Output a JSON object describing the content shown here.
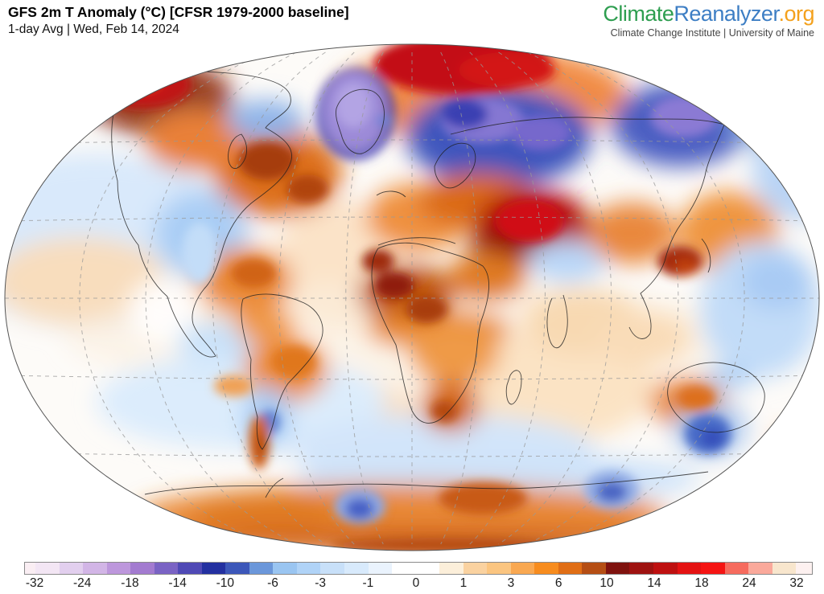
{
  "header": {
    "title": "GFS 2m T Anomaly (°C) [CFSR 1979-2000 baseline]",
    "subtitle": "1-day Avg | Wed, Feb 14, 2024"
  },
  "branding": {
    "logo_part1": "Climate",
    "logo_part2": "Reanalyzer",
    "logo_part3": ".org",
    "tagline": "Climate Change Institute | University of Maine",
    "colors": {
      "part1": "#2e9e50",
      "part2": "#3d7ec4",
      "part3": "#f4a11d"
    }
  },
  "colorbar": {
    "unit": "°C",
    "tick_labels": [
      "-32",
      "-24",
      "-18",
      "-14",
      "-10",
      "-6",
      "-3",
      "-1",
      "0",
      "1",
      "3",
      "6",
      "10",
      "14",
      "18",
      "24",
      "32"
    ],
    "tick_pct": [
      1.33,
      7.37,
      13.41,
      19.45,
      25.49,
      31.53,
      37.57,
      43.61,
      49.69,
      55.71,
      61.73,
      67.78,
      73.88,
      79.9,
      85.92,
      91.94,
      97.96
    ],
    "boundary_values": [
      -40,
      -32,
      -28,
      -24,
      -21,
      -18,
      -16,
      -14,
      -12,
      -10,
      -8,
      -6,
      -4,
      -3,
      -2,
      -1,
      -0.5,
      0.5,
      1,
      2,
      3,
      4,
      6,
      8,
      10,
      12,
      14,
      16,
      18,
      21,
      24,
      28,
      32,
      40
    ],
    "boundary_pct": [
      0,
      1.33,
      4.35,
      7.37,
      10.39,
      13.41,
      16.43,
      19.45,
      22.47,
      25.49,
      28.51,
      31.53,
      34.55,
      37.57,
      40.59,
      43.61,
      46.63,
      52.67,
      55.69,
      58.71,
      61.73,
      64.76,
      67.78,
      70.8,
      73.82,
      76.84,
      79.86,
      82.88,
      85.9,
      88.92,
      91.94,
      94.96,
      97.96,
      100
    ],
    "segment_colors": [
      "#faeef3",
      "#f3e6f4",
      "#e2cfee",
      "#d2b5e6",
      "#bd97dc",
      "#a37bd0",
      "#7a63c4",
      "#4f49b5",
      "#2330a0",
      "#3c57b9",
      "#6b97da",
      "#9ac5f1",
      "#b0d3f7",
      "#c8e0f9",
      "#d8eafc",
      "#eaf3fd",
      "#ffffff",
      "#fcefda",
      "#fad2a0",
      "#fbc580",
      "#f9a851",
      "#f78c1e",
      "#e06e15",
      "#b54e14",
      "#7f120e",
      "#9e1210",
      "#be1010",
      "#e41212",
      "#f51413",
      "#f66b5e",
      "#faa99b",
      "#f8e6cd",
      "#fdf1f0"
    ]
  },
  "map": {
    "base_color": "#fdfbf8",
    "regions": [
      [
        "npac-wash-blue",
        120,
        253,
        190,
        110,
        "#d9e9fb",
        1,
        "s"
      ],
      [
        "npac-wash-orange",
        100,
        303,
        110,
        55,
        "#f8ddbd",
        1,
        "s"
      ],
      [
        "npac-wash-orange2",
        235,
        333,
        70,
        35,
        "#f9e0c4",
        1,
        "s"
      ],
      [
        "atlantic-wash-orange",
        425,
        283,
        85,
        80,
        "#fbe3c8",
        1,
        "s"
      ],
      [
        "tropics-warm-wash",
        512,
        373,
        430,
        70,
        "#fbeedd",
        0.6,
        "s"
      ],
      [
        "satlantic-wash",
        430,
        473,
        95,
        45,
        "#f9ddbe",
        1,
        "s"
      ],
      [
        "indian-ocean-wash",
        690,
        433,
        125,
        70,
        "#fbe3c4",
        1,
        "s"
      ],
      [
        "spacific-wash-blue",
        300,
        453,
        180,
        60,
        "#dcecfc",
        1,
        "s"
      ],
      [
        "southern-ocean-blue",
        550,
        513,
        190,
        45,
        "#d3e5fa",
        1,
        "s"
      ],
      [
        "southern-ocean-blue2",
        620,
        548,
        250,
        32,
        "#cfe3f9",
        1,
        "s"
      ],
      [
        "arctic-orange-halo",
        600,
        70,
        180,
        60,
        "#ef8030",
        0.9,
        "s"
      ],
      [
        "alaska-maroon-halo",
        200,
        75,
        90,
        48,
        "#8f2b10",
        0.9,
        "s"
      ],
      [
        "canada-east-orange",
        345,
        168,
        80,
        55,
        "#dd6f1d",
        1,
        "s"
      ],
      [
        "canada-west-orange",
        245,
        128,
        65,
        38,
        "#e98038",
        1,
        "s"
      ],
      [
        "arctic-islands-blue",
        330,
        103,
        48,
        26,
        "#8fb4e8",
        1,
        "s"
      ],
      [
        "canada-central-blue",
        250,
        243,
        58,
        52,
        "#aacef5",
        1,
        "s"
      ],
      [
        "us-east-orange",
        305,
        303,
        58,
        42,
        "#ea8a38",
        1,
        "s"
      ],
      [
        "us-west-neutral",
        205,
        338,
        45,
        40,
        "#ffffff",
        0.9,
        "s"
      ],
      [
        "gulf-blue",
        275,
        378,
        55,
        26,
        "#c8e1f9",
        1,
        "s"
      ],
      [
        "mexico-blue",
        250,
        403,
        28,
        16,
        "#d5e8fb",
        1,
        "s"
      ],
      [
        "scandinavia-russia-blue",
        620,
        123,
        115,
        62,
        "#4156bd",
        1,
        "s"
      ],
      [
        "ne-siberia-blue",
        845,
        108,
        85,
        52,
        "#4c5fc2",
        1,
        "s"
      ],
      [
        "topright-blue",
        970,
        93,
        70,
        50,
        "#7fa3de",
        0.9,
        "s"
      ],
      [
        "topright-blue2",
        995,
        163,
        60,
        65,
        "#b9d4f5",
        1,
        "s"
      ],
      [
        "europe-orange",
        520,
        223,
        65,
        42,
        "#ef9140",
        1,
        "s"
      ],
      [
        "eeurope-orange",
        595,
        203,
        75,
        35,
        "#db6a16",
        1,
        "s"
      ],
      [
        "kazakhstan-darkred",
        662,
        233,
        72,
        45,
        "#b31110",
        1,
        "s"
      ],
      [
        "kazakhstan-maroon",
        635,
        258,
        55,
        25,
        "#8f1b0c",
        0.85,
        "s"
      ],
      [
        "sahara-dark-orange",
        505,
        318,
        60,
        36,
        "#c05510",
        1,
        "s"
      ],
      [
        "mideast-orange",
        605,
        298,
        50,
        30,
        "#e07a24",
        1,
        "s"
      ],
      [
        "sahel-band",
        545,
        363,
        90,
        24,
        "#e8882f",
        1,
        "s"
      ],
      [
        "eq-africa-orange",
        565,
        393,
        55,
        38,
        "#ef9a47",
        1,
        "s"
      ],
      [
        "s-africa-dark",
        560,
        458,
        36,
        32,
        "#d4691a",
        1,
        "s"
      ],
      [
        "tibet-blue",
        705,
        278,
        48,
        26,
        "#b9d6f7",
        1,
        "s"
      ],
      [
        "china-orange",
        785,
        243,
        55,
        38,
        "#e9883c",
        1,
        "s"
      ],
      [
        "nwpacific-orange",
        905,
        243,
        62,
        52,
        "#ef9540",
        1,
        "s"
      ],
      [
        "npacific-blue",
        945,
        338,
        75,
        85,
        "#c2dcf8",
        1,
        "s"
      ],
      [
        "npacific-blue2",
        965,
        303,
        45,
        35,
        "#a9cbf4",
        1,
        "s"
      ],
      [
        "india-warm-wash",
        725,
        353,
        75,
        42,
        "#f8d9b2",
        1,
        "s"
      ],
      [
        "seasia-warm-wash",
        800,
        373,
        60,
        33,
        "#f9dcb8",
        1,
        "s"
      ],
      [
        "n-southamerica-orange",
        330,
        358,
        38,
        22,
        "#f09a4a",
        1,
        "s"
      ],
      [
        "brazil-orange",
        355,
        413,
        52,
        40,
        "#ec8c3a",
        1,
        "s"
      ],
      [
        "argentina-blue",
        332,
        473,
        30,
        40,
        "#a9cdf5",
        1,
        "s"
      ],
      [
        "australia-orange",
        855,
        453,
        48,
        30,
        "#e8873a",
        1,
        "s"
      ],
      [
        "aus-south-blue-halo",
        882,
        486,
        46,
        36,
        "#9ec0ef",
        0.85,
        "s"
      ],
      [
        "aus-ne-blue",
        905,
        423,
        32,
        13,
        "#aacdf4",
        1,
        "s"
      ],
      [
        "nz-orange",
        985,
        503,
        22,
        12,
        "#f0a050",
        1,
        "s"
      ],
      [
        "antarctic-orange-band",
        500,
        593,
        330,
        38,
        "#e8832c",
        0.95,
        "s"
      ],
      [
        "antarctic-orange-left",
        330,
        588,
        90,
        22,
        "#e07a22",
        1,
        "s"
      ],
      [
        "antarctic-bottom-strip",
        512,
        625,
        340,
        15,
        "#cf5f12",
        1,
        "s"
      ],
      [
        "arctic-red-band",
        575,
        33,
        110,
        38,
        "#c30f12",
        1,
        "c"
      ],
      [
        "arctic-red-core",
        630,
        40,
        60,
        22,
        "#d31414",
        1,
        "c"
      ],
      [
        "alaska-red",
        178,
        58,
        60,
        30,
        "#c01712",
        1,
        "c"
      ],
      [
        "alaska-red-core",
        170,
        54,
        34,
        16,
        "#e0251b",
        1,
        "c"
      ],
      [
        "alaska-pink-streak",
        158,
        50,
        18,
        7,
        "#f2694f",
        1,
        "c"
      ],
      [
        "bering-blue",
        100,
        78,
        40,
        26,
        "#3d55b8",
        1,
        "c"
      ],
      [
        "bering-purple",
        92,
        70,
        18,
        12,
        "#7e6fcb",
        1,
        "c"
      ],
      [
        "greenland-indigo-ring",
        442,
        95,
        50,
        58,
        "#4b46b8",
        0.8,
        "c"
      ],
      [
        "greenland-purple",
        441,
        90,
        38,
        48,
        "#9c8ad8",
        1,
        "c"
      ],
      [
        "greenland-purple-core",
        439,
        84,
        22,
        28,
        "#b3a4e4",
        1,
        "c"
      ],
      [
        "iceland-blue",
        477,
        103,
        10,
        7,
        "#6d82d6",
        1,
        "c"
      ],
      [
        "scandinavia-purple",
        600,
        103,
        52,
        28,
        "#8577d2",
        1,
        "c"
      ],
      [
        "urals-purple",
        672,
        118,
        38,
        22,
        "#7668cc",
        1,
        "c"
      ],
      [
        "scandinavia-indigo",
        578,
        95,
        28,
        18,
        "#3b3fb2",
        1,
        "c"
      ],
      [
        "ne-siberia-purple",
        850,
        98,
        42,
        26,
        "#8b7ad4",
        1,
        "c"
      ],
      [
        "canada-east-red",
        332,
        153,
        36,
        24,
        "#a63c10",
        1,
        "c"
      ],
      [
        "canada-east-red2",
        382,
        188,
        26,
        18,
        "#b0450f",
        1,
        "c"
      ],
      [
        "us-plains-blue",
        248,
        268,
        22,
        38,
        "#c3ddf8",
        1,
        "c"
      ],
      [
        "us-east-core",
        315,
        293,
        28,
        18,
        "#d06418",
        1,
        "c"
      ],
      [
        "spain-morocco-dark",
        470,
        278,
        20,
        15,
        "#9e2a0c",
        1,
        "c"
      ],
      [
        "sahara-core-west",
        490,
        308,
        25,
        16,
        "#8f1d0c",
        1,
        "c"
      ],
      [
        "sahara-core-east",
        530,
        338,
        26,
        17,
        "#a83c0e",
        1,
        "c"
      ],
      [
        "kazakhstan-red-core",
        658,
        228,
        42,
        26,
        "#d01113",
        1,
        "c"
      ],
      [
        "korea-japan-dark",
        845,
        278,
        28,
        19,
        "#a42c0e",
        1,
        "c"
      ],
      [
        "korea-japan-core",
        852,
        285,
        14,
        10,
        "#c0400f",
        1,
        "c"
      ],
      [
        "brazil-core",
        365,
        403,
        28,
        20,
        "#e0771f",
        1,
        "c"
      ],
      [
        "argentina-blue-core",
        335,
        478,
        13,
        15,
        "#5d7fd0",
        1,
        "c"
      ],
      [
        "patagonia-orange",
        322,
        503,
        13,
        34,
        "#d2641a",
        1,
        "c"
      ],
      [
        "patagonia-core",
        325,
        508,
        7,
        17,
        "#b54a10",
        1,
        "c"
      ],
      [
        "s-africa-core",
        552,
        465,
        16,
        13,
        "#b54a10",
        1,
        "c"
      ],
      [
        "australia-core",
        865,
        448,
        24,
        15,
        "#dd6f1d",
        1,
        "c"
      ],
      [
        "aus-south-blue",
        880,
        493,
        29,
        25,
        "#4a6cc8",
        1,
        "c"
      ],
      [
        "aus-south-blue-core",
        885,
        498,
        14,
        12,
        "#3550bb",
        1,
        "c"
      ],
      [
        "antarctic-blue1-halo",
        447,
        583,
        32,
        22,
        "#8fa9e4",
        1,
        "c"
      ],
      [
        "antarctic-blue1",
        447,
        586,
        18,
        13,
        "#4761c6",
        1,
        "c"
      ],
      [
        "antarctic-blue2-halo",
        760,
        562,
        34,
        24,
        "#93aee6",
        1,
        "c"
      ],
      [
        "antarctic-blue2",
        760,
        565,
        19,
        13,
        "#4c66c4",
        1,
        "c"
      ],
      [
        "antarctic-dark-core",
        600,
        573,
        55,
        20,
        "#c85a12",
        1,
        "c"
      ],
      [
        "antarctic-bottom-core",
        560,
        631,
        150,
        9,
        "#b54a10",
        1,
        "c"
      ],
      [
        "central-america-orange",
        290,
        433,
        24,
        13,
        "#f0a054",
        1,
        "c"
      ]
    ]
  }
}
